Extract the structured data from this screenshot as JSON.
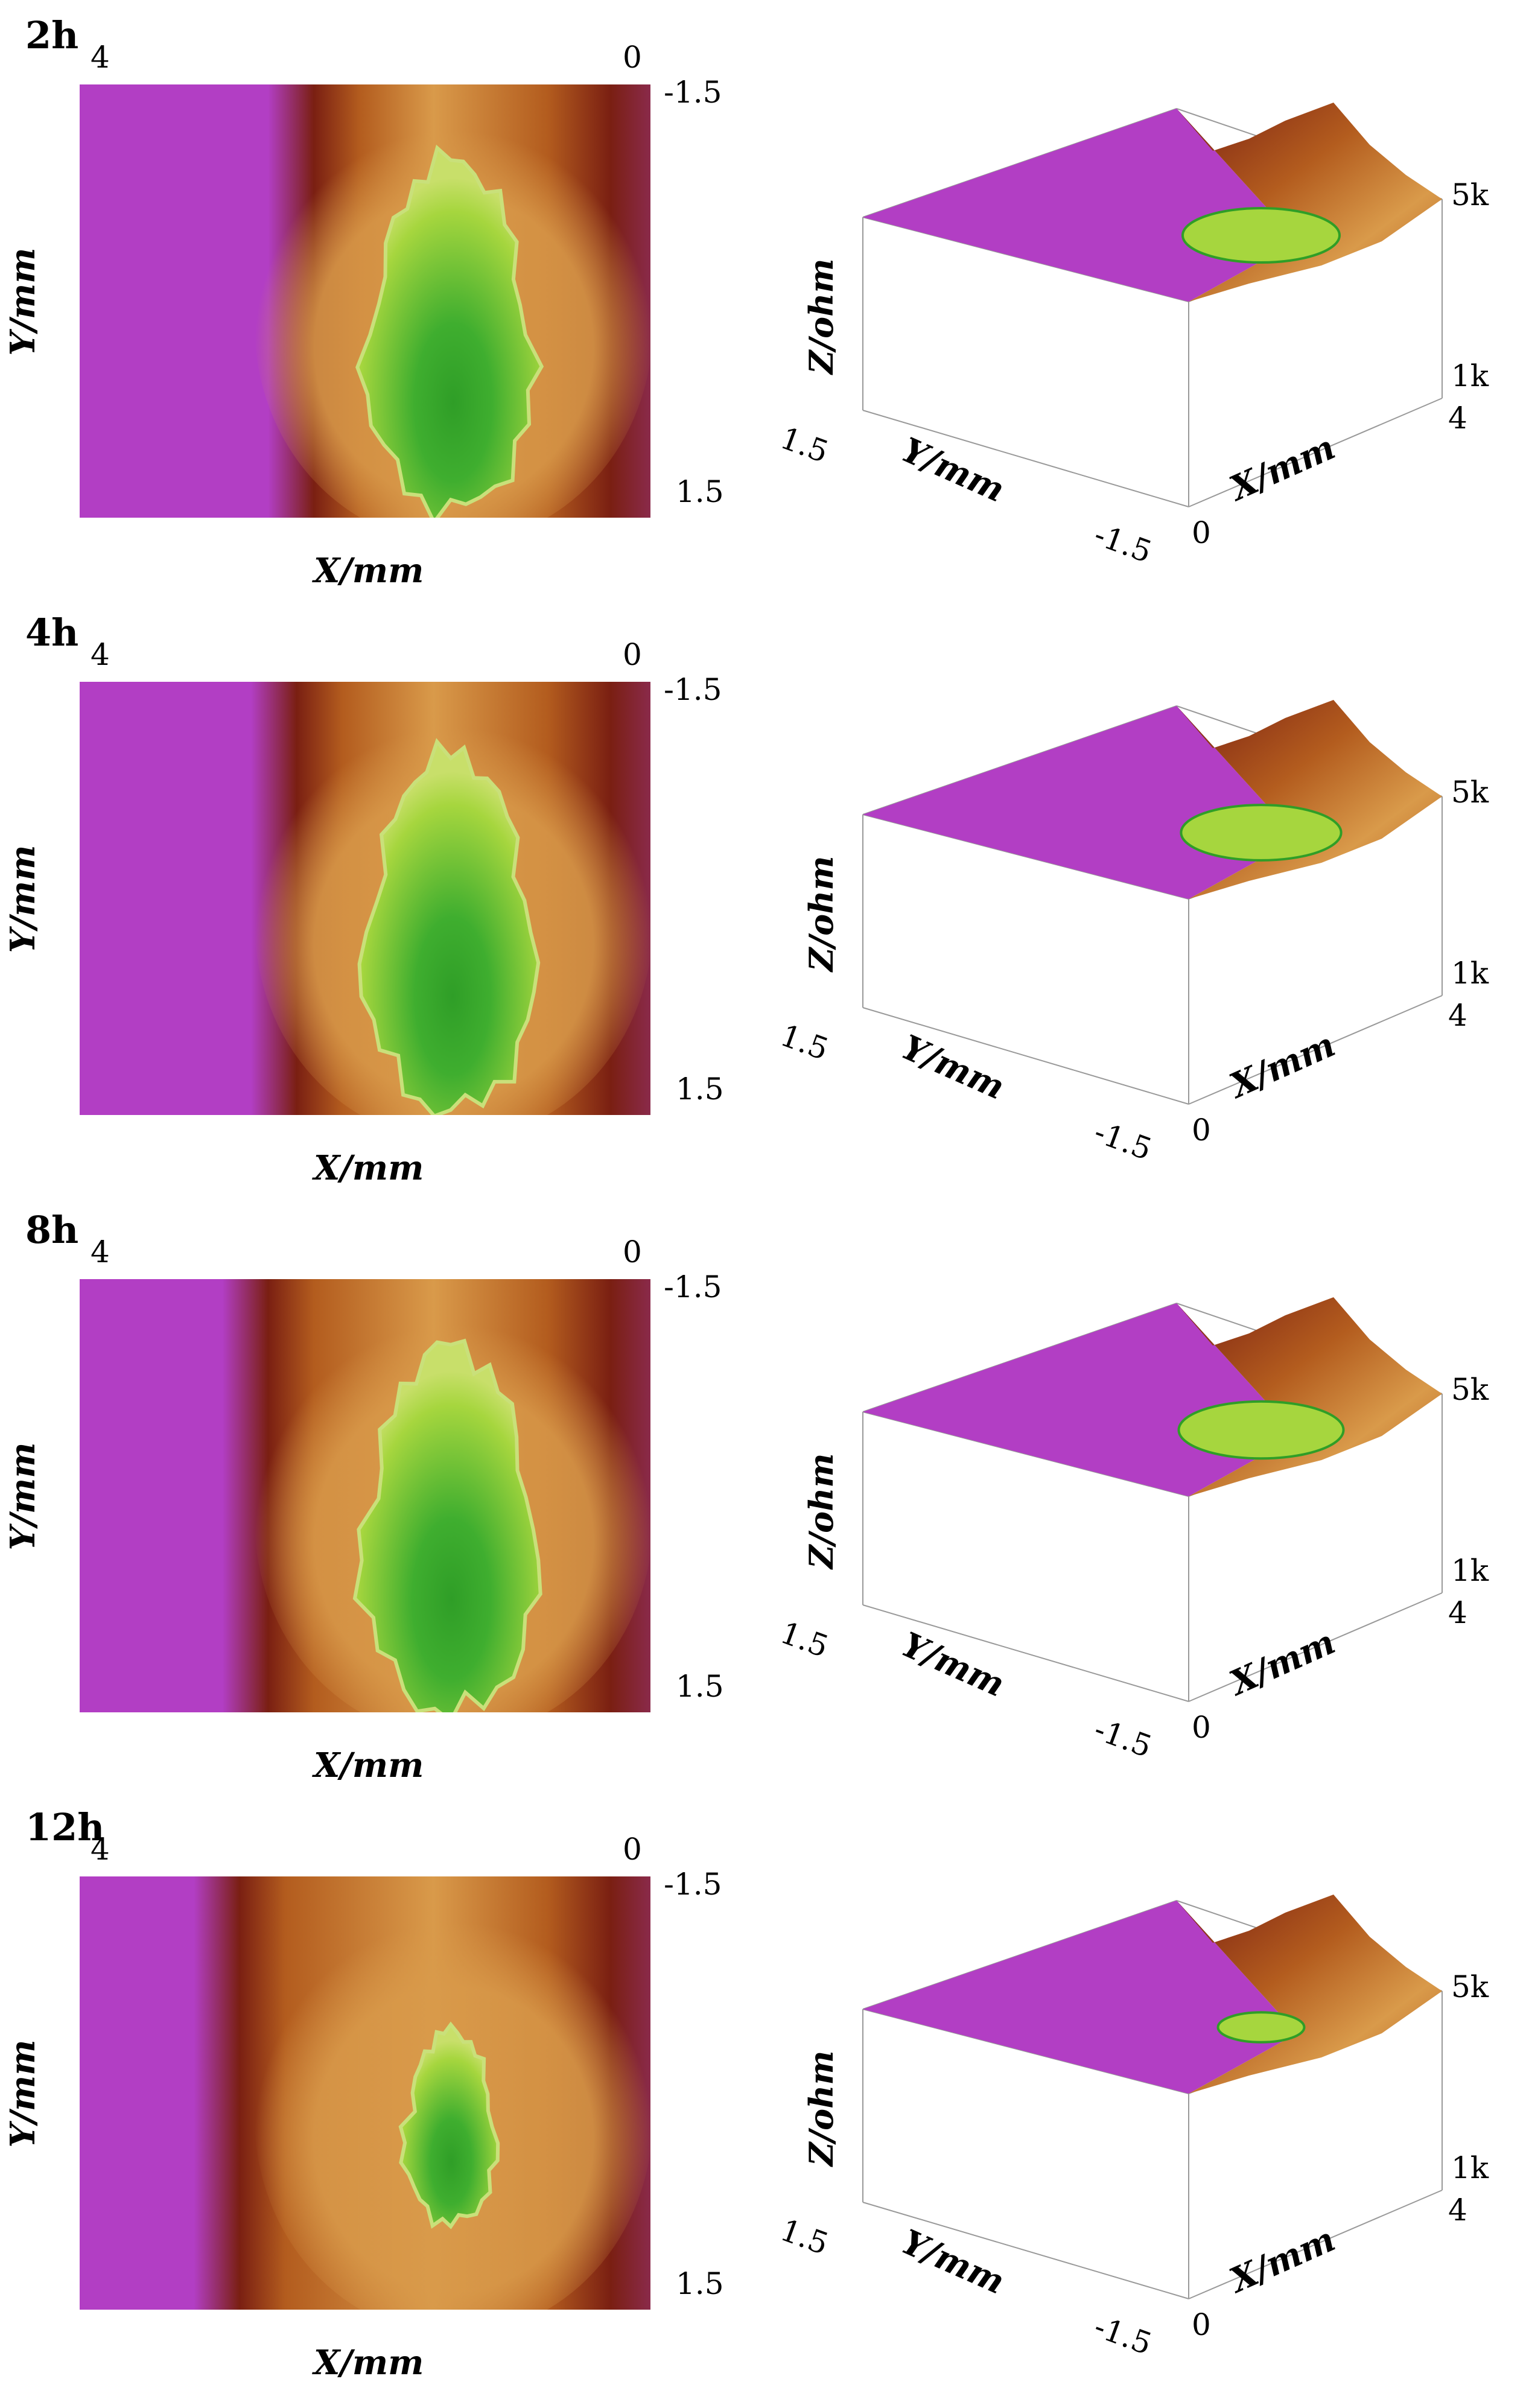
{
  "colors": {
    "magenta": "#b23ec4",
    "dark_red": "#7a1f12",
    "brown": "#b35c1e",
    "orange": "#d99a4a",
    "yellow_green": "#a6d63e",
    "green": "#2f9e27"
  },
  "chart_data": [
    {
      "type": "heatmap",
      "title": "2h",
      "xlabel": "X/mm",
      "ylabel": "Y/mm",
      "x_ticks": [
        "4",
        "0"
      ],
      "y_ticks": [
        "-1.5",
        "1.5"
      ],
      "xlim": [
        4,
        0
      ],
      "ylim": [
        -1.5,
        1.5
      ],
      "annotations": [
        "Green region (low impedance) centered near X≈1.5 mm, Y≈0.4 mm; magenta (high impedance) for X>2.6 mm"
      ],
      "surface": {
        "zlabel": "Z/ohm",
        "z_ticks": [
          "5k",
          "1k"
        ],
        "zlim": [
          1000,
          5000
        ],
        "x_ticks": [
          "0",
          "4"
        ],
        "y_ticks": [
          "1.5",
          "-1.5"
        ],
        "xlabel": "X/mm",
        "ylabel": "Y/mm"
      }
    },
    {
      "type": "heatmap",
      "title": "4h",
      "xlabel": "X/mm",
      "ylabel": "Y/mm",
      "x_ticks": [
        "4",
        "0"
      ],
      "y_ticks": [
        "-1.5",
        "1.5"
      ],
      "xlim": [
        4,
        0
      ],
      "ylim": [
        -1.5,
        1.5
      ],
      "surface": {
        "zlabel": "Z/ohm",
        "z_ticks": [
          "5k",
          "1k"
        ],
        "zlim": [
          1000,
          5000
        ],
        "x_ticks": [
          "0",
          "4"
        ],
        "y_ticks": [
          "1.5",
          "-1.5"
        ],
        "xlabel": "X/mm",
        "ylabel": "Y/mm"
      }
    },
    {
      "type": "heatmap",
      "title": "8h",
      "xlabel": "X/mm",
      "ylabel": "Y/mm",
      "x_ticks": [
        "4",
        "0"
      ],
      "y_ticks": [
        "-1.5",
        "1.5"
      ],
      "xlim": [
        4,
        0
      ],
      "ylim": [
        -1.5,
        1.5
      ],
      "surface": {
        "zlabel": "Z/ohm",
        "z_ticks": [
          "5k",
          "1k"
        ],
        "zlim": [
          1000,
          5000
        ],
        "x_ticks": [
          "0",
          "4"
        ],
        "y_ticks": [
          "1.5",
          "-1.5"
        ],
        "xlabel": "X/mm",
        "ylabel": "Y/mm"
      }
    },
    {
      "type": "heatmap",
      "title": "12h",
      "xlabel": "X/mm",
      "ylabel": "Y/mm",
      "x_ticks": [
        "4",
        "0"
      ],
      "y_ticks": [
        "-1.5",
        "1.5"
      ],
      "xlim": [
        4,
        0
      ],
      "ylim": [
        -1.5,
        1.5
      ],
      "surface": {
        "zlabel": "Z/ohm",
        "z_ticks": [
          "5k",
          "1k"
        ],
        "zlim": [
          1000,
          5000
        ],
        "x_ticks": [
          "0",
          "4"
        ],
        "y_ticks": [
          "1.5",
          "-1.5"
        ],
        "xlabel": "X/mm",
        "ylabel": "Y/mm"
      }
    }
  ]
}
